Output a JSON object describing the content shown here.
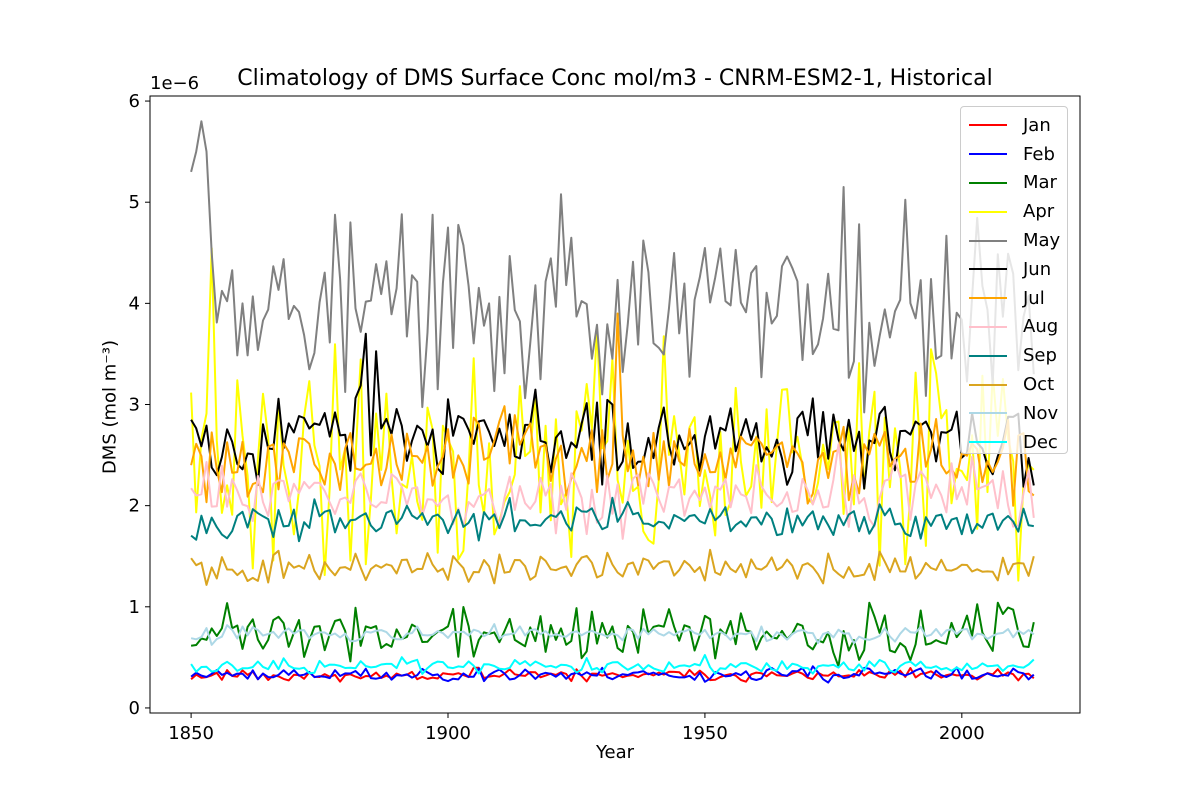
{
  "chart_data": {
    "type": "line",
    "title": "Climatology of DMS Surface Conc mol/m3 - CNRM-ESM2-1, Historical",
    "xlabel": "Year",
    "ylabel": "DMS (mol m⁻³)",
    "offset_text": "1e−6",
    "xlim": [
      1842,
      2023
    ],
    "ylim": [
      -0.05,
      6.05
    ],
    "scale": 1e-06,
    "xticks": [
      1850,
      1900,
      1950,
      2000
    ],
    "yticks": [
      0,
      1,
      2,
      3,
      4,
      5,
      6
    ],
    "legend_position": "upper right",
    "x": {
      "start": 1850,
      "end": 2014,
      "step": 1
    },
    "series": [
      {
        "name": "Jan",
        "color": "#ff0000",
        "level": 0.32,
        "noise": 0.035,
        "seed": 11
      },
      {
        "name": "Feb",
        "color": "#0000ff",
        "level": 0.33,
        "noise": 0.04,
        "seed": 23
      },
      {
        "name": "Mar",
        "color": "#008000",
        "level": 0.72,
        "noise": 0.16,
        "seed": 37
      },
      {
        "name": "Apr",
        "color": "#ffff00",
        "level": 2.45,
        "noise": 0.65,
        "seed": 41
      },
      {
        "name": "May",
        "color": "#808080",
        "level": 3.95,
        "noise": 0.55,
        "seed": 53,
        "anchors": [
          [
            1850,
            5.3
          ],
          [
            1851,
            5.5
          ],
          [
            1852,
            5.8
          ],
          [
            1853,
            5.5
          ],
          [
            1854,
            4.5
          ],
          [
            1860,
            4.0
          ],
          [
            1930,
            3.1
          ],
          [
            1977,
            5.15
          ],
          [
            2014,
            3.3
          ]
        ]
      },
      {
        "name": "Jun",
        "color": "#000000",
        "level": 2.7,
        "noise": 0.28,
        "seed": 67,
        "anchors": [
          [
            1850,
            2.85
          ],
          [
            1884,
            3.7
          ],
          [
            1932,
            3.0
          ],
          [
            2014,
            2.2
          ]
        ]
      },
      {
        "name": "Jul",
        "color": "#ffa500",
        "level": 2.45,
        "noise": 0.25,
        "seed": 79,
        "anchors": [
          [
            1850,
            2.4
          ],
          [
            1933,
            3.9
          ],
          [
            2014,
            2.1
          ]
        ]
      },
      {
        "name": "Aug",
        "color": "#ffc0cb",
        "level": 2.1,
        "noise": 0.2,
        "seed": 83
      },
      {
        "name": "Sep",
        "color": "#008080",
        "level": 1.85,
        "noise": 0.1,
        "seed": 97
      },
      {
        "name": "Oct",
        "color": "#daa520",
        "level": 1.38,
        "noise": 0.09,
        "seed": 101,
        "anchors": [
          [
            1850,
            1.48
          ],
          [
            2014,
            1.5
          ]
        ]
      },
      {
        "name": "Nov",
        "color": "#add8e6",
        "level": 0.73,
        "noise": 0.05,
        "seed": 113
      },
      {
        "name": "Dec",
        "color": "#00ffff",
        "level": 0.41,
        "noise": 0.04,
        "seed": 127
      }
    ]
  }
}
